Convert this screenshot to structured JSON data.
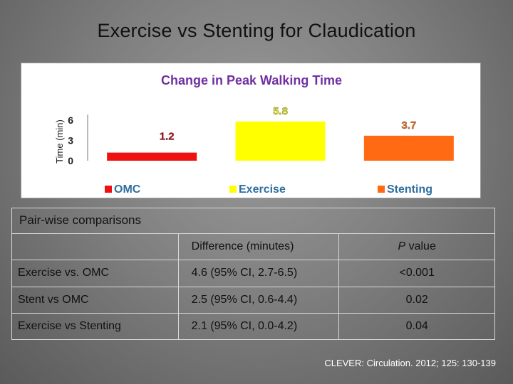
{
  "slide": {
    "title": "Exercise vs Stenting for Claudication"
  },
  "chart_data": {
    "type": "bar",
    "title": "Change in Peak Walking Time",
    "ylabel": "Time (min)",
    "xlabel": "",
    "ylim": [
      0,
      6
    ],
    "yticks": [
      "0",
      "3",
      "6"
    ],
    "grid": false,
    "legend_placement": "bottom",
    "categories": [
      "OMC",
      "Exercise",
      "Stenting"
    ],
    "values": [
      1.2,
      5.8,
      3.7
    ],
    "data_labels": [
      "1.2",
      "5.8",
      "3.7"
    ],
    "colors": [
      "#ee1111",
      "#ffff00",
      "#ff6a13"
    ],
    "label_colors": [
      "#c00000",
      "#e8e800",
      "#ff6a13"
    ],
    "title_color": "#7030a0"
  },
  "comparisons": {
    "heading": "Pair-wise comparisons",
    "columns": [
      "",
      "Difference (minutes)",
      "P value"
    ],
    "pvalue_italic": "P",
    "pvalue_rest": " value",
    "rows": [
      [
        "Exercise vs. OMC",
        "4.6 (95% CI, 2.7-6.5)",
        "<0.001"
      ],
      [
        "Stent vs OMC",
        "2.5 (95% CI, 0.6-4.4)",
        "0.02"
      ],
      [
        "Exercise vs Stenting",
        "2.1 (95% CI, 0.0-4.2)",
        "0.04"
      ]
    ]
  },
  "citation": "CLEVER: Circulation. 2012; 125: 130-139"
}
